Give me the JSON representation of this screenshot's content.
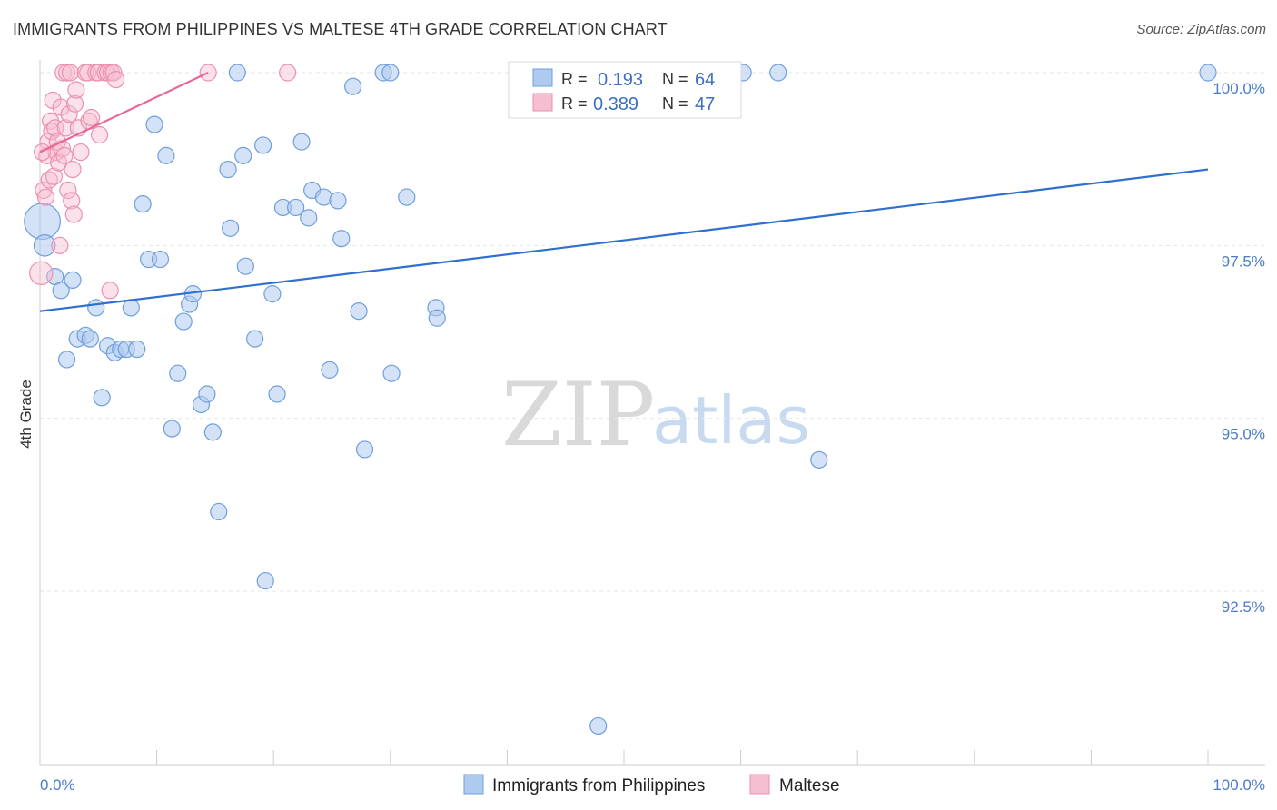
{
  "title": "IMMIGRANTS FROM PHILIPPINES VS MALTESE 4TH GRADE CORRELATION CHART",
  "source": "Source: ZipAtlas.com",
  "watermark": {
    "zip": "ZIP",
    "atlas": "atlas"
  },
  "colors": {
    "blue_fill": "#aecbef",
    "blue_stroke": "#6f9fdc",
    "blue_line": "#2f6fd0",
    "pink_fill": "#f6bfd1",
    "pink_stroke": "#ec8fb0",
    "pink_line": "#e8689a",
    "grid": "#e6e6e6",
    "tick_text": "#4a7cc9"
  },
  "legend": {
    "rows": [
      {
        "r_label": "R =",
        "r_value": "0.193",
        "n_label": "N =",
        "n_value": "64"
      },
      {
        "r_label": "R =",
        "r_value": "0.389",
        "n_label": "N =",
        "n_value": "47"
      }
    ]
  },
  "chart_data": {
    "type": "scatter",
    "title": "IMMIGRANTS FROM PHILIPPINES VS MALTESE 4TH GRADE CORRELATION CHART",
    "xlabel": "",
    "ylabel": "4th Grade",
    "xlim": [
      0,
      100
    ],
    "ylim": [
      90.0,
      100.5
    ],
    "y_ticks": [
      {
        "value": 100.0,
        "label": "100.0%"
      },
      {
        "value": 97.5,
        "label": "97.5%"
      },
      {
        "value": 95.0,
        "label": "95.0%"
      },
      {
        "value": 92.5,
        "label": "92.5%"
      }
    ],
    "x_tick_labels": {
      "left": "0.0%",
      "right": "100.0%"
    },
    "grid": true,
    "legend_position": "top-center",
    "series": [
      {
        "name": "Immigrants from Philippines",
        "color": "blue",
        "r": 0.193,
        "n": 64,
        "trend": {
          "x": [
            0,
            100
          ],
          "y": [
            96.55,
            98.6
          ]
        },
        "points": [
          {
            "x": 0.2,
            "y": 97.85,
            "s": 2.2
          },
          {
            "x": 0.4,
            "y": 97.5,
            "s": 1.3
          },
          {
            "x": 1.3,
            "y": 97.05,
            "s": 1
          },
          {
            "x": 1.8,
            "y": 96.85,
            "s": 1
          },
          {
            "x": 2.3,
            "y": 95.85,
            "s": 1
          },
          {
            "x": 2.8,
            "y": 97.0,
            "s": 1
          },
          {
            "x": 3.2,
            "y": 96.15,
            "s": 1
          },
          {
            "x": 3.9,
            "y": 96.2,
            "s": 1
          },
          {
            "x": 4.3,
            "y": 96.15,
            "s": 1
          },
          {
            "x": 4.8,
            "y": 96.6,
            "s": 1
          },
          {
            "x": 5.3,
            "y": 95.3,
            "s": 1
          },
          {
            "x": 5.8,
            "y": 96.05,
            "s": 1
          },
          {
            "x": 6.4,
            "y": 95.95,
            "s": 1
          },
          {
            "x": 6.9,
            "y": 96.0,
            "s": 1
          },
          {
            "x": 7.4,
            "y": 96.0,
            "s": 1
          },
          {
            "x": 7.8,
            "y": 96.6,
            "s": 1
          },
          {
            "x": 8.3,
            "y": 96.0,
            "s": 1
          },
          {
            "x": 8.8,
            "y": 98.1,
            "s": 1
          },
          {
            "x": 9.3,
            "y": 97.3,
            "s": 1
          },
          {
            "x": 9.8,
            "y": 99.25,
            "s": 1
          },
          {
            "x": 10.3,
            "y": 97.3,
            "s": 1
          },
          {
            "x": 10.8,
            "y": 98.8,
            "s": 1
          },
          {
            "x": 11.3,
            "y": 94.85,
            "s": 1
          },
          {
            "x": 11.8,
            "y": 95.65,
            "s": 1
          },
          {
            "x": 12.3,
            "y": 96.4,
            "s": 1
          },
          {
            "x": 12.8,
            "y": 96.65,
            "s": 1
          },
          {
            "x": 13.1,
            "y": 96.8,
            "s": 1
          },
          {
            "x": 13.8,
            "y": 95.2,
            "s": 1
          },
          {
            "x": 14.3,
            "y": 95.35,
            "s": 1
          },
          {
            "x": 14.8,
            "y": 94.8,
            "s": 1
          },
          {
            "x": 15.3,
            "y": 93.65,
            "s": 1
          },
          {
            "x": 16.1,
            "y": 98.6,
            "s": 1
          },
          {
            "x": 16.3,
            "y": 97.75,
            "s": 1
          },
          {
            "x": 16.9,
            "y": 100.0,
            "s": 1
          },
          {
            "x": 17.4,
            "y": 98.8,
            "s": 1
          },
          {
            "x": 17.6,
            "y": 97.2,
            "s": 1
          },
          {
            "x": 18.4,
            "y": 96.15,
            "s": 1
          },
          {
            "x": 19.1,
            "y": 98.95,
            "s": 1
          },
          {
            "x": 19.3,
            "y": 92.65,
            "s": 1
          },
          {
            "x": 19.9,
            "y": 96.8,
            "s": 1
          },
          {
            "x": 20.3,
            "y": 95.35,
            "s": 1
          },
          {
            "x": 20.8,
            "y": 98.05,
            "s": 1
          },
          {
            "x": 21.9,
            "y": 98.05,
            "s": 1
          },
          {
            "x": 22.4,
            "y": 99.0,
            "s": 1
          },
          {
            "x": 23.0,
            "y": 97.9,
            "s": 1
          },
          {
            "x": 23.3,
            "y": 98.3,
            "s": 1
          },
          {
            "x": 24.3,
            "y": 98.2,
            "s": 1
          },
          {
            "x": 24.8,
            "y": 95.7,
            "s": 1
          },
          {
            "x": 25.5,
            "y": 98.15,
            "s": 1
          },
          {
            "x": 25.8,
            "y": 97.6,
            "s": 1
          },
          {
            "x": 26.8,
            "y": 99.8,
            "s": 1
          },
          {
            "x": 27.3,
            "y": 96.55,
            "s": 1
          },
          {
            "x": 27.8,
            "y": 94.55,
            "s": 1
          },
          {
            "x": 29.4,
            "y": 100.0,
            "s": 1
          },
          {
            "x": 30.0,
            "y": 100.0,
            "s": 1
          },
          {
            "x": 30.1,
            "y": 95.65,
            "s": 1
          },
          {
            "x": 31.4,
            "y": 98.2,
            "s": 1
          },
          {
            "x": 33.9,
            "y": 96.6,
            "s": 1
          },
          {
            "x": 34.0,
            "y": 96.45,
            "s": 1
          },
          {
            "x": 47.8,
            "y": 90.55,
            "s": 1
          },
          {
            "x": 60.2,
            "y": 100.0,
            "s": 1
          },
          {
            "x": 63.2,
            "y": 100.0,
            "s": 1
          },
          {
            "x": 66.7,
            "y": 94.4,
            "s": 1
          },
          {
            "x": 100.0,
            "y": 100.0,
            "s": 1
          }
        ]
      },
      {
        "name": "Maltese",
        "color": "pink",
        "r": 0.389,
        "n": 47,
        "trend": {
          "x": [
            0,
            14.4
          ],
          "y": [
            98.85,
            100.0
          ]
        },
        "points": [
          {
            "x": 0.1,
            "y": 97.1,
            "s": 1.4
          },
          {
            "x": 0.3,
            "y": 98.3,
            "s": 1
          },
          {
            "x": 0.5,
            "y": 98.2,
            "s": 1
          },
          {
            "x": 0.6,
            "y": 98.8,
            "s": 1
          },
          {
            "x": 0.7,
            "y": 99.0,
            "s": 1
          },
          {
            "x": 0.8,
            "y": 98.45,
            "s": 1
          },
          {
            "x": 0.9,
            "y": 99.3,
            "s": 1
          },
          {
            "x": 1.0,
            "y": 99.15,
            "s": 1
          },
          {
            "x": 1.1,
            "y": 99.6,
            "s": 1
          },
          {
            "x": 1.2,
            "y": 98.5,
            "s": 1
          },
          {
            "x": 1.3,
            "y": 99.2,
            "s": 1
          },
          {
            "x": 1.4,
            "y": 98.85,
            "s": 1
          },
          {
            "x": 1.5,
            "y": 99.0,
            "s": 1
          },
          {
            "x": 1.6,
            "y": 98.7,
            "s": 1
          },
          {
            "x": 1.7,
            "y": 97.5,
            "s": 1
          },
          {
            "x": 1.8,
            "y": 99.5,
            "s": 1
          },
          {
            "x": 1.9,
            "y": 98.9,
            "s": 1
          },
          {
            "x": 2.0,
            "y": 100.0,
            "s": 1
          },
          {
            "x": 2.1,
            "y": 98.8,
            "s": 1
          },
          {
            "x": 2.2,
            "y": 99.2,
            "s": 1
          },
          {
            "x": 2.3,
            "y": 100.0,
            "s": 1
          },
          {
            "x": 2.4,
            "y": 98.3,
            "s": 1
          },
          {
            "x": 2.5,
            "y": 99.4,
            "s": 1
          },
          {
            "x": 2.6,
            "y": 100.0,
            "s": 1
          },
          {
            "x": 2.7,
            "y": 98.15,
            "s": 1
          },
          {
            "x": 2.8,
            "y": 98.6,
            "s": 1
          },
          {
            "x": 2.9,
            "y": 97.95,
            "s": 1
          },
          {
            "x": 3.0,
            "y": 99.55,
            "s": 1
          },
          {
            "x": 3.1,
            "y": 99.75,
            "s": 1
          },
          {
            "x": 3.3,
            "y": 99.2,
            "s": 1
          },
          {
            "x": 3.5,
            "y": 98.85,
            "s": 1
          },
          {
            "x": 3.9,
            "y": 100.0,
            "s": 1
          },
          {
            "x": 4.1,
            "y": 100.0,
            "s": 1
          },
          {
            "x": 4.2,
            "y": 99.3,
            "s": 1
          },
          {
            "x": 4.4,
            "y": 99.35,
            "s": 1
          },
          {
            "x": 4.8,
            "y": 100.0,
            "s": 1
          },
          {
            "x": 5.0,
            "y": 100.0,
            "s": 1
          },
          {
            "x": 5.1,
            "y": 99.1,
            "s": 1
          },
          {
            "x": 5.6,
            "y": 100.0,
            "s": 1
          },
          {
            "x": 5.8,
            "y": 100.0,
            "s": 1
          },
          {
            "x": 6.0,
            "y": 96.85,
            "s": 1
          },
          {
            "x": 6.1,
            "y": 100.0,
            "s": 1
          },
          {
            "x": 6.3,
            "y": 100.0,
            "s": 1
          },
          {
            "x": 6.5,
            "y": 99.9,
            "s": 1
          },
          {
            "x": 14.4,
            "y": 100.0,
            "s": 1
          },
          {
            "x": 21.2,
            "y": 100.0,
            "s": 1
          },
          {
            "x": 0.2,
            "y": 98.85,
            "s": 1
          }
        ]
      }
    ]
  }
}
